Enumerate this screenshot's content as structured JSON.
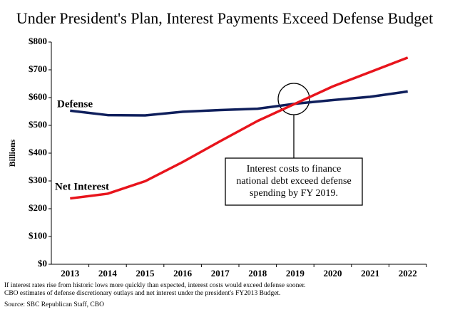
{
  "chart_data": {
    "type": "line",
    "title": "Under President's Plan, Interest Payments Exceed Defense Budget",
    "y_label": "Billions",
    "categories": [
      "2013",
      "2014",
      "2015",
      "2016",
      "2017",
      "2018",
      "2019",
      "2020",
      "2021",
      "2022"
    ],
    "series": [
      {
        "name": "Defense",
        "color": "#0f1f5c",
        "values": [
          553,
          537,
          536,
          549,
          555,
          560,
          578,
          591,
          603,
          622
        ]
      },
      {
        "name": "Net Interest",
        "color": "#e8141c",
        "values": [
          237,
          254,
          299,
          368,
          443,
          516,
          578,
          640,
          692,
          744
        ]
      }
    ],
    "ylim": [
      0,
      800
    ],
    "yticks": [
      {
        "value": 0,
        "label": "$0"
      },
      {
        "value": 100,
        "label": "$100"
      },
      {
        "value": 200,
        "label": "$200"
      },
      {
        "value": 300,
        "label": "$300"
      },
      {
        "value": 400,
        "label": "$400"
      },
      {
        "value": 500,
        "label": "$500"
      },
      {
        "value": 600,
        "label": "$600"
      },
      {
        "value": 700,
        "label": "$700"
      },
      {
        "value": 800,
        "label": "$800"
      }
    ],
    "grid": false,
    "annotation": [
      "Interest costs to finance",
      "national debt exceed defense",
      "spending by FY 2019."
    ],
    "footnotes": [
      "If interest rates rise from historic lows more quickly than expected, interest costs would exceed defense sooner.",
      "CBO estimates of defense discretionary outlays and net interest under the president's FY2013 Budget."
    ],
    "source": "Source: SBC Republican Staff, CBO"
  }
}
